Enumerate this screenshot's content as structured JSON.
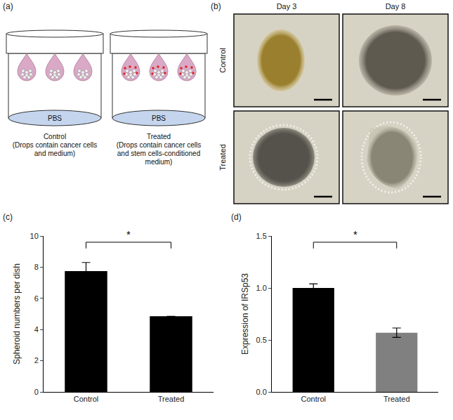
{
  "panels": {
    "a": {
      "label": "(a)",
      "dishes": [
        {
          "medium": "PBS",
          "caption": "Control",
          "description": "(Drops contain cancer cells and medium)"
        },
        {
          "medium": "PBS",
          "caption": "Treated",
          "description": "(Drops contain cancer cells and stem cells-conditioned medium)"
        }
      ]
    },
    "b": {
      "label": "(b)",
      "columns": [
        "Day 3",
        "Day 8"
      ],
      "rows": [
        "Control",
        "Treated"
      ]
    }
  },
  "chart_data": [
    {
      "label": "(c)",
      "type": "bar",
      "categories": [
        "Control",
        "Treated"
      ],
      "values": [
        7.75,
        4.85
      ],
      "errors": [
        0.55,
        0
      ],
      "color": "#000000",
      "y_label": "Spheroid numbers per dish",
      "ylim": [
        0,
        10
      ],
      "yticks": [
        0,
        2,
        4,
        6,
        8,
        10
      ],
      "grid": false,
      "annotations": [
        {
          "text": "*"
        }
      ]
    },
    {
      "label": "(d)",
      "type": "bar",
      "categories": [
        "Control",
        "Treated"
      ],
      "values": [
        1.0,
        0.57
      ],
      "errors": [
        0.04,
        0.045
      ],
      "colors": [
        "#000000",
        "#808080"
      ],
      "y_label": "Expression of IRSp53",
      "ylim": [
        0,
        1.5
      ],
      "yticks": [
        {
          "value": 0,
          "label": "0.0"
        },
        {
          "value": 0.5,
          "label": "0.5"
        },
        {
          "value": 1,
          "label": "1.0"
        },
        {
          "value": 1.5,
          "label": "1.5"
        }
      ],
      "grid": false,
      "annotations": [
        {
          "text": "*"
        }
      ]
    }
  ]
}
